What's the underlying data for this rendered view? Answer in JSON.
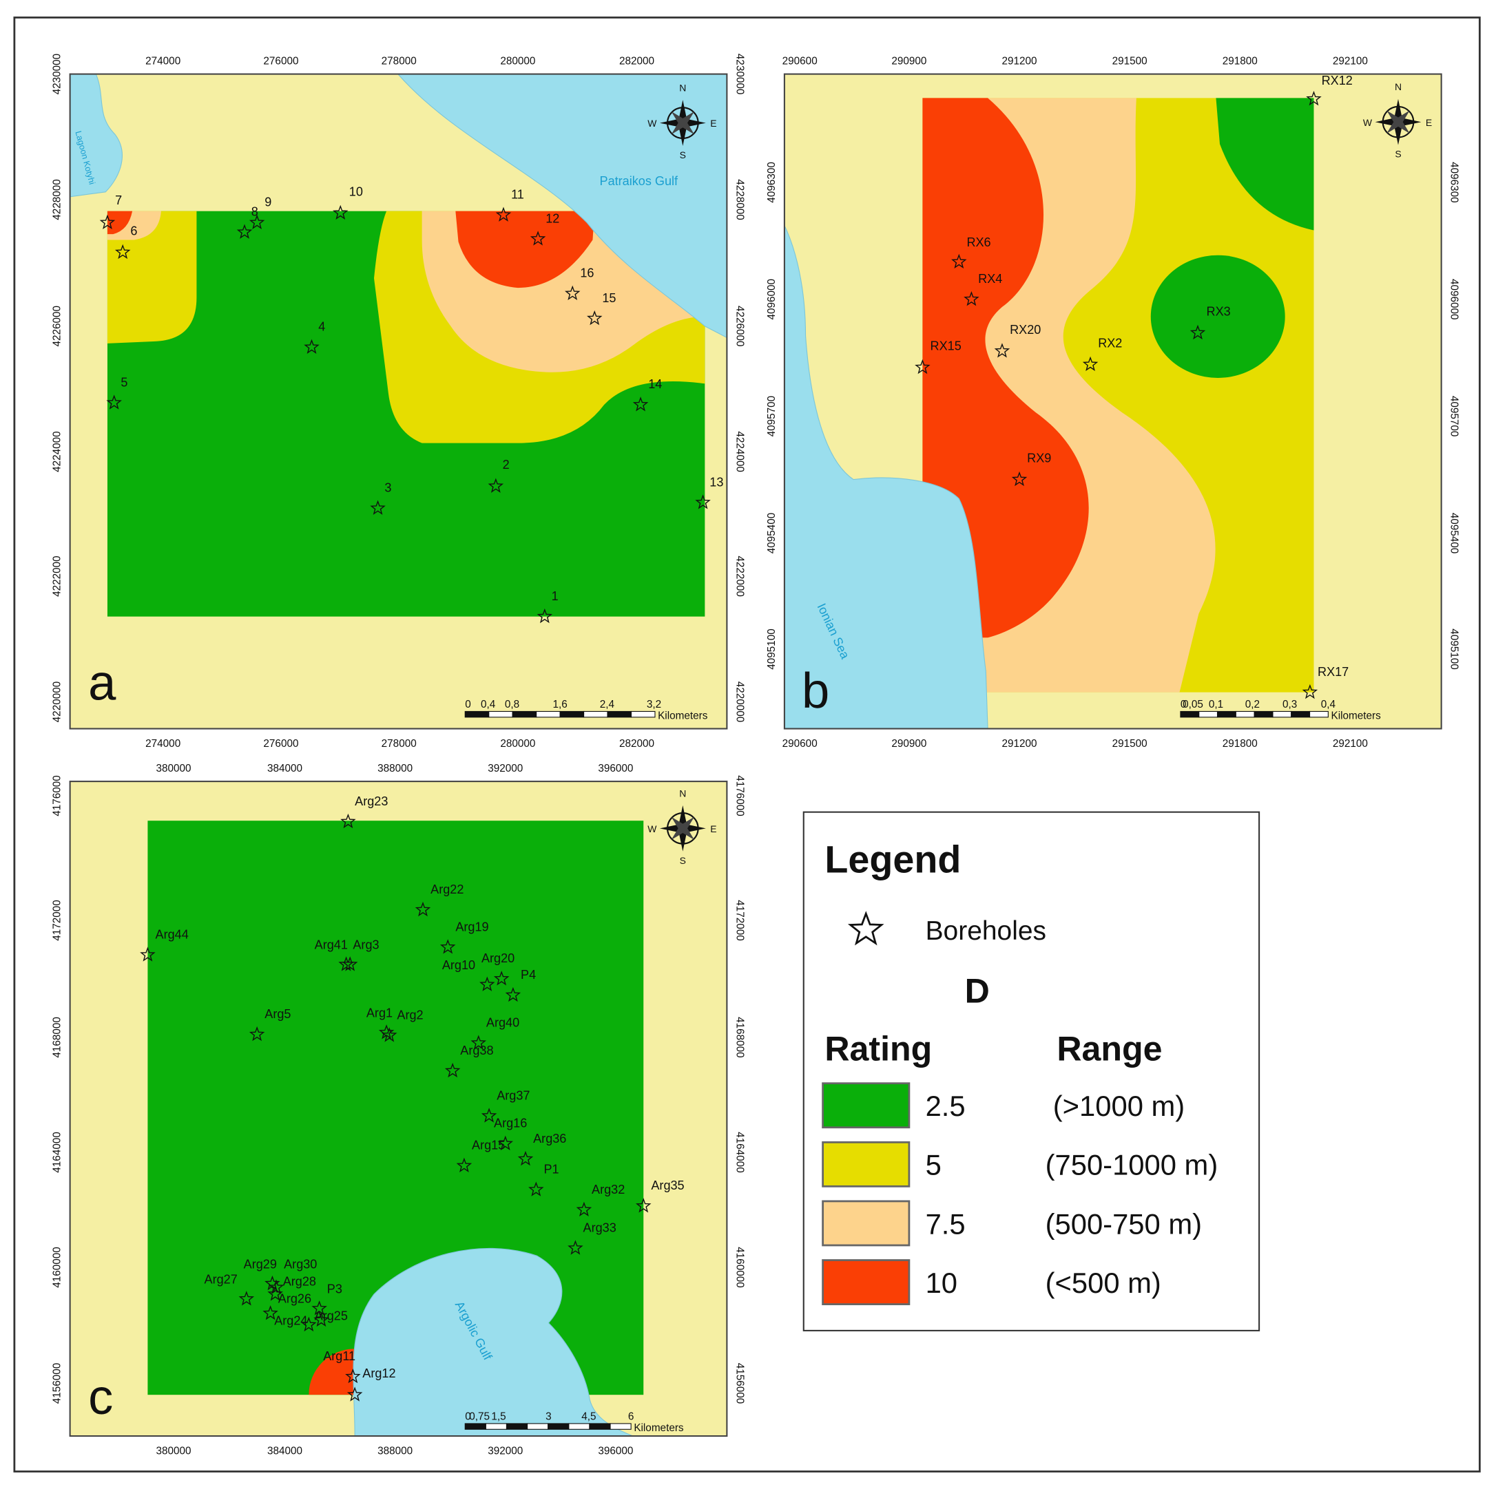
{
  "panels": [
    {
      "letter": "a",
      "x_ticks": [
        "274000",
        "276000",
        "278000",
        "280000",
        "282000"
      ],
      "y_ticks": [
        "4230000",
        "4228000",
        "4226000",
        "4224000",
        "4222000",
        "4220000"
      ],
      "boreholes": [
        "7",
        "6",
        "8",
        "9",
        "10",
        "11",
        "12",
        "16",
        "15",
        "4",
        "5",
        "14",
        "2",
        "3",
        "13",
        "1"
      ],
      "places": [
        "Patraikos Gulf",
        "Lagoon Kotyhi"
      ],
      "scale": {
        "labels": [
          "0",
          "0,4",
          "0,8",
          "1,6",
          "2,4",
          "3,2"
        ],
        "unit": "Kilometers"
      }
    },
    {
      "letter": "b",
      "x_ticks": [
        "290600",
        "290900",
        "291200",
        "291500",
        "291800",
        "292100"
      ],
      "y_ticks": [
        "4096300",
        "4096000",
        "4095700",
        "4095400",
        "4095100"
      ],
      "boreholes": [
        "RX12",
        "RX6",
        "RX4",
        "RX20",
        "RX15",
        "RX2",
        "RX3",
        "RX9",
        "RX17"
      ],
      "places": [
        "Ionian Sea"
      ],
      "scale": {
        "labels": [
          "0",
          "0,05",
          "0,1",
          "0,2",
          "0,3",
          "0,4"
        ],
        "unit": "Kilometers"
      }
    },
    {
      "letter": "c",
      "x_ticks": [
        "380000",
        "384000",
        "388000",
        "392000",
        "396000"
      ],
      "y_ticks": [
        "4176000",
        "4172000",
        "4168000",
        "4164000",
        "4160000",
        "4156000"
      ],
      "boreholes": [
        "Arg23",
        "Arg22",
        "Arg44",
        "Arg19",
        "Arg41",
        "Arg3",
        "Arg10",
        "Arg20",
        "P4",
        "Arg5",
        "Arg1",
        "Arg2",
        "Arg40",
        "Arg38",
        "Arg37",
        "Arg16",
        "Arg15",
        "Arg36",
        "P1",
        "Arg32",
        "Arg35",
        "Arg33",
        "Arg29",
        "Arg30",
        "Arg28",
        "Arg27",
        "Arg26",
        "P3",
        "Arg24",
        "Arg25",
        "Arg11",
        "Arg12"
      ],
      "places": [
        "Argolic Gulf"
      ],
      "scale": {
        "labels": [
          "0",
          "0,75",
          "1,5",
          "3",
          "4,5",
          "6"
        ],
        "unit": "Kilometers"
      }
    }
  ],
  "compass": {
    "n": "N",
    "s": "S",
    "e": "E",
    "w": "W"
  },
  "legend": {
    "title": "Legend",
    "symbol_label": "Boreholes",
    "parameter": "D",
    "rating_header": "Rating",
    "range_header": "Range",
    "items": [
      {
        "rating": "2.5",
        "range": "(>1000 m)",
        "color": "#0aaf0a"
      },
      {
        "rating": "5",
        "range": "(750-1000 m)",
        "color": "#e6dd00"
      },
      {
        "rating": "7.5",
        "range": "(500-750 m)",
        "color": "#fdd38c"
      },
      {
        "rating": "10",
        "range": "(<500 m)",
        "color": "#fa3f05"
      }
    ]
  },
  "map_colors": {
    "land": "#f5efa3",
    "sea": "#9adeed",
    "place_text": "#1a9fd0"
  }
}
